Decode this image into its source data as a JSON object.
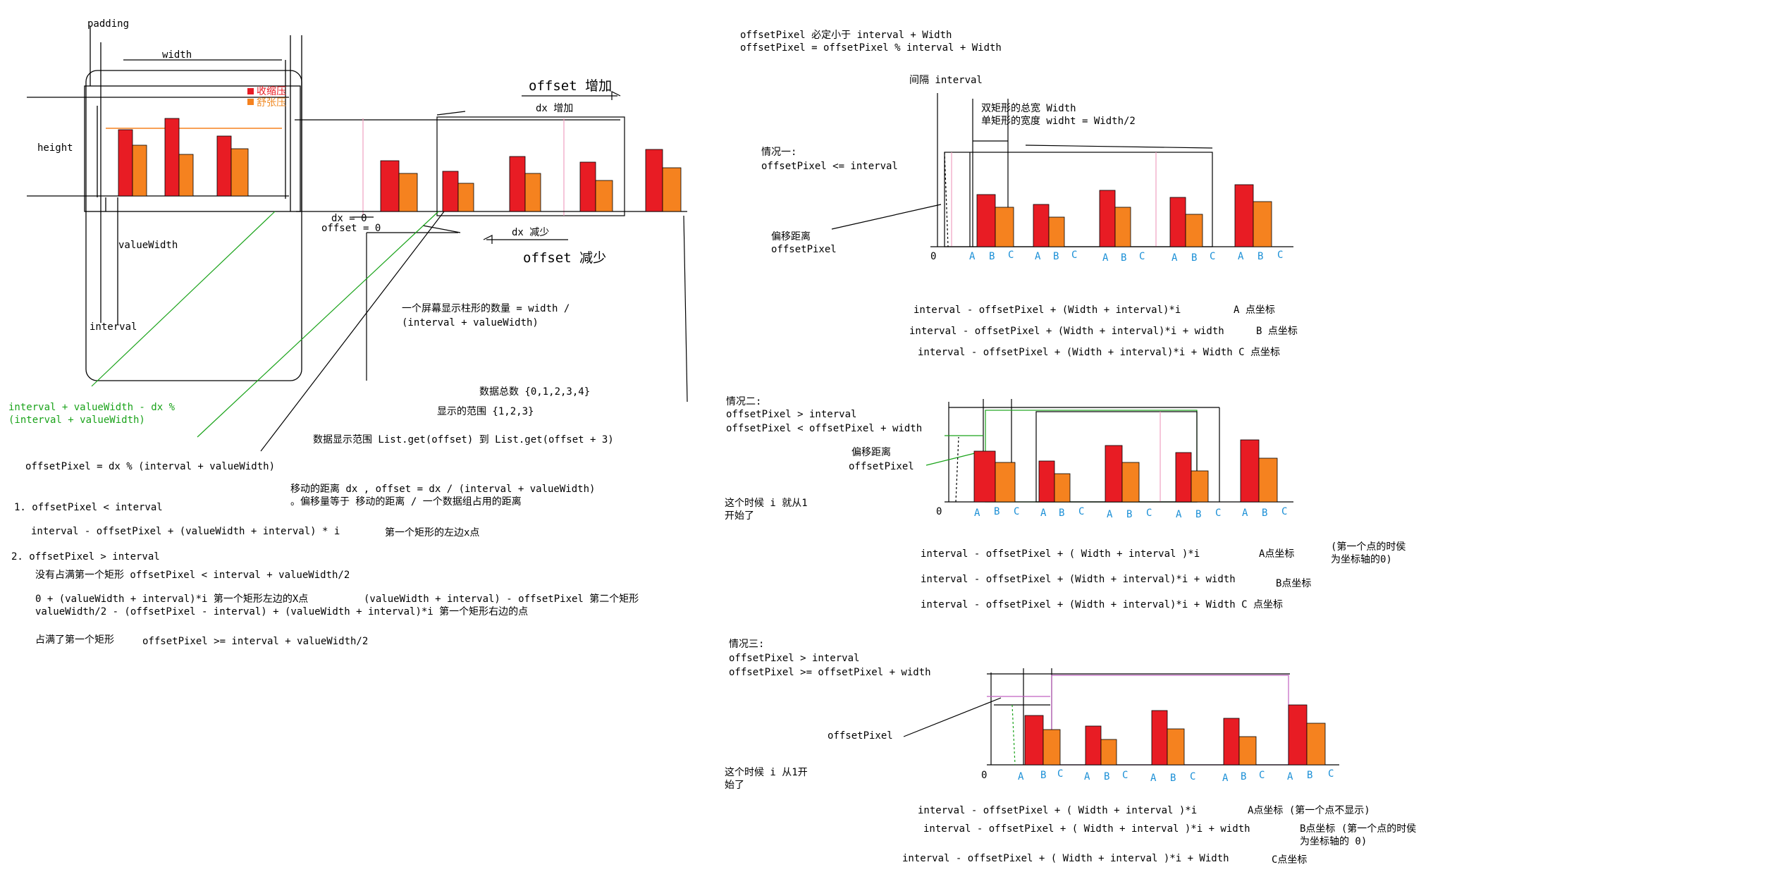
{
  "colors": {
    "red": "#e81c24",
    "orange": "#f5821f",
    "green": "#1aa31a",
    "blue": "#1a8fd6",
    "pink": "#f0a0c0",
    "purple": "#c060c0"
  },
  "left": {
    "padding": "padding",
    "width": "width",
    "height": "height",
    "valueWidth": "valueWidth",
    "interval": "interval",
    "legend1": "收缩压",
    "legend2": "舒张压",
    "offset_inc": "offset 增加",
    "dx_inc": "dx 增加",
    "dx0": "dx = 0",
    "offset0": "offset = 0",
    "dx_dec": "dx 减少",
    "offset_dec": "offset 减少",
    "count1": "一个屏幕显示柱形的数量 =  width /",
    "count2": "(interval + valueWidth)",
    "total": "数据总数  {0,1,2,3,4}",
    "range": "显示的范围  {1,2,3}",
    "listrange": "数据显示范围 List.get(offset) 到 List.get(offset + 3)",
    "green1": "interval + valueWidth - dx %",
    "green2": "(interval + valueWidth)",
    "offsetpx": "offsetPixel = dx % (interval + valueWidth)",
    "move1": "移动的距离 dx , offset = dx / (interval + valueWidth)",
    "move2": "。偏移量等于 移动的距离 / 一个数据组占用的距离",
    "c1": "1. offsetPixel < interval",
    "c1f": "interval - offsetPixel + (valueWidth + interval) * i",
    "c1n": "第一个矩形的左边x点",
    "c2": "2.  offsetPixel > interval",
    "c2a": "没有占满第一个矩形 offsetPixel < interval + valueWidth/2",
    "c2b1": "0 + (valueWidth + interval)*i  第一个矩形左边的X点",
    "c2b2": "(valueWidth + interval) - offsetPixel  第二个矩形",
    "c2c": "valueWidth/2 - (offsetPixel - interval) + (valueWidth + interval)*i  第一个矩形右边的点",
    "c2d1": "占满了第一个矩形",
    "c2d2": "offsetPixel >= interval + valueWidth/2"
  },
  "right": {
    "h1": "offsetPixel 必定小于  interval + Width",
    "h2": "offsetPixel = offsetPixel % interval + Width",
    "gap": "间隔 interval",
    "tw": "双矩形的总宽 Width",
    "sw": "单矩形的宽度 widht = Width/2",
    "case1a": "情况一:",
    "case1b": "offsetPixel <= interval",
    "off1": "偏移距离",
    "off2": "offsetPixel",
    "zero": "0",
    "a": "A",
    "b": "B",
    "c": "C",
    "f1a": "interval - offsetPixel + (Width + interval)*i",
    "f1an": "A 点坐标",
    "f1b": "interval - offsetPixel + (Width + interval)*i + width",
    "f1bn": "B 点坐标",
    "f1c": "interval - offsetPixel + (Width + interval)*i + Width C 点坐标",
    "case2a": "情况二:",
    "case2b": "offsetPixel > interval",
    "case2c": "offsetPixel < offsetPixel + width",
    "i1a": "这个时候 i 就从1",
    "i1b": "开始了",
    "f2a": "interval - offsetPixel + ( Width + interval )*i",
    "f2an": "A点坐标",
    "f2note1": "(第一个点的时侯",
    "f2note2": "为坐标轴的0)",
    "f2b": "interval - offsetPixel + (Width + interval)*i + width",
    "f2bn": "B点坐标",
    "f2c": "interval - offsetPixel + (Width + interval)*i + Width C 点坐标",
    "case3a": "情况三:",
    "case3b": "offsetPixel > interval",
    "case3c": "offsetPixel >= offsetPixel + width",
    "i2a": "这个时候 i 从1开",
    "i2b": "始了",
    "f3a": "interval - offsetPixel + ( Width + interval )*i",
    "f3an": "A点坐标  (第一个点不显示)",
    "f3b": "interval - offsetPixel + ( Width + interval )*i + width",
    "f3bn1": "B点坐标  (第一个点的时侯",
    "f3bn2": "为坐标轴的 0)",
    "f3c": "interval - offsetPixel + ( Width + interval )*i + Width",
    "f3cn": "C点坐标"
  }
}
